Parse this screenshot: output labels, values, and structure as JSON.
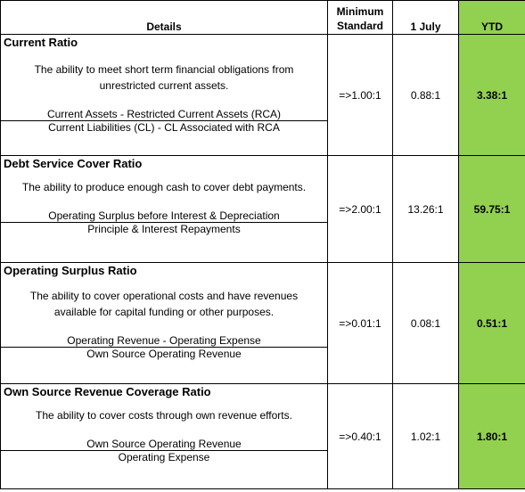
{
  "header": {
    "details": "Details",
    "minimum_line1": "Minimum",
    "minimum_line2": "Standard",
    "july": "1 July",
    "ytd": "YTD"
  },
  "colors": {
    "ytd_green": "#92d050"
  },
  "rows": [
    {
      "title": "Current Ratio",
      "desc1": "The ability to meet short term financial obligations from",
      "desc2": "unrestricted current assets.",
      "numerator": "Current Assets - Restricted Current Assets (RCA)",
      "denominator": "Current Liabilities (CL) - CL Associated with RCA",
      "min": "=>1.00:1",
      "july": "0.88:1",
      "ytd": "3.38:1"
    },
    {
      "title": "Debt Service Cover Ratio",
      "desc1": "The ability to produce enough cash to cover debt payments.",
      "desc2": "",
      "numerator": "Operating Surplus before Interest & Depreciation",
      "denominator": "Principle & Interest Repayments",
      "min": "=>2.00:1",
      "july": "13.26:1",
      "ytd": "59.75:1"
    },
    {
      "title": "Operating Surplus Ratio",
      "desc1": "The ability to cover operational costs and have revenues",
      "desc2": "available for capital funding or other purposes.",
      "numerator": "Operating Revenue - Operating Expense",
      "denominator": "Own Source Operating Revenue",
      "min": "=>0.01:1",
      "july": "0.08:1",
      "ytd": "0.51:1"
    },
    {
      "title": "Own Source Revenue Coverage Ratio",
      "desc1": "The ability to cover costs through own revenue efforts.",
      "desc2": "",
      "numerator": "Own Source Operating Revenue",
      "denominator": "Operating Expense",
      "min": "=>0.40:1",
      "july": "1.02:1",
      "ytd": "1.80:1"
    }
  ]
}
